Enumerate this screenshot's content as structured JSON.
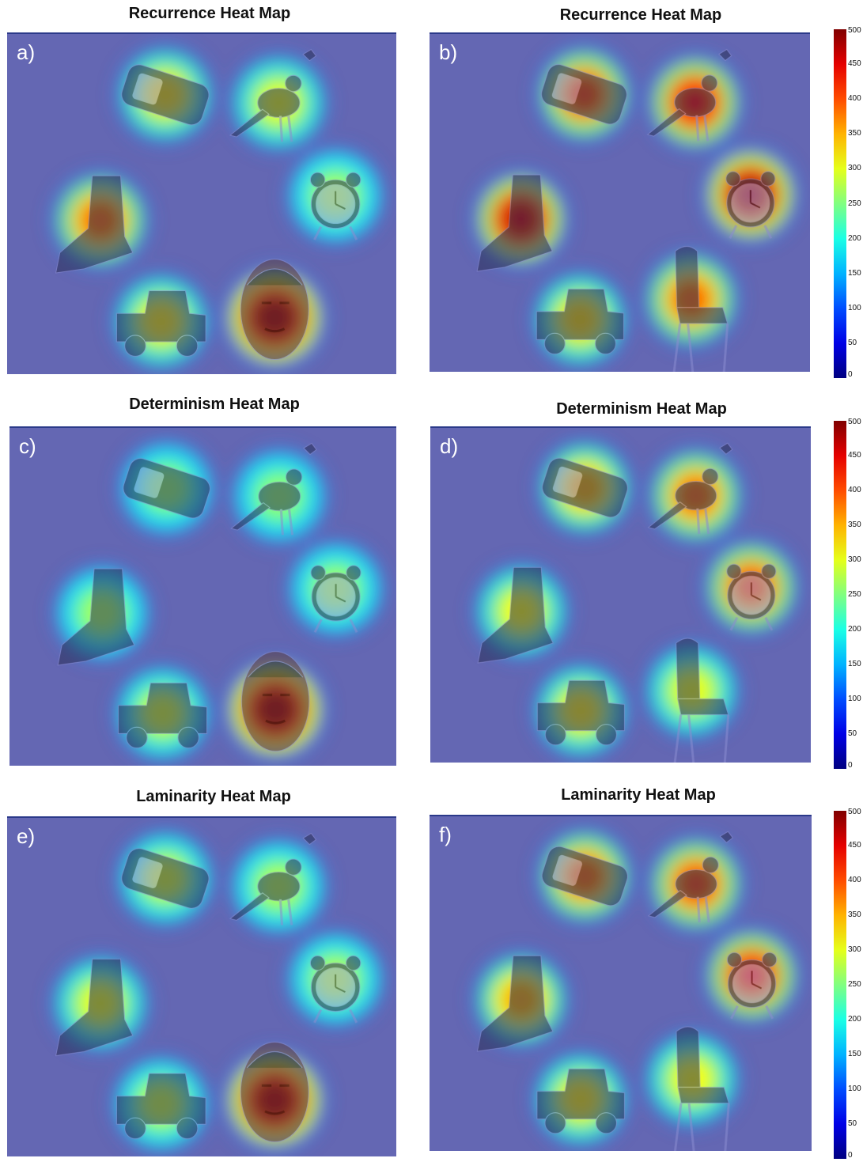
{
  "panels": [
    {
      "label": "a)",
      "title": "Recurrence Heat Map",
      "chair": false,
      "heat": {
        "phone": 0.3,
        "bird": 0.22,
        "shoe": 0.55,
        "clock": 0.1,
        "truck": 0.28,
        "face": 1.0,
        "chair": 0
      }
    },
    {
      "label": "b)",
      "title": "Recurrence Heat Map",
      "chair": true,
      "heat": {
        "phone": 0.62,
        "bird": 0.75,
        "shoe": 0.85,
        "clock": 0.92,
        "truck": 0.32,
        "face": 0,
        "chair": 0.55
      }
    },
    {
      "label": "c)",
      "title": "Determinism Heat Map",
      "chair": false,
      "heat": {
        "phone": 0.05,
        "bird": 0.05,
        "shoe": 0.08,
        "clock": 0.08,
        "truck": 0.18,
        "face": 1.0,
        "chair": 0
      }
    },
    {
      "label": "d)",
      "title": "Determinism Heat Map",
      "chair": true,
      "heat": {
        "phone": 0.4,
        "bird": 0.55,
        "shoe": 0.25,
        "clock": 0.62,
        "truck": 0.28,
        "face": 0,
        "chair": 0.22
      }
    },
    {
      "label": "e)",
      "title": "Laminarity Heat Map",
      "chair": false,
      "heat": {
        "phone": 0.18,
        "bird": 0.12,
        "shoe": 0.22,
        "clock": 0.12,
        "truck": 0.15,
        "face": 0.98,
        "chair": 0
      }
    },
    {
      "label": "f)",
      "title": "Laminarity Heat Map",
      "chair": true,
      "heat": {
        "phone": 0.55,
        "bird": 0.62,
        "shoe": 0.42,
        "clock": 0.72,
        "truck": 0.28,
        "face": 0,
        "chair": 0.25
      }
    }
  ],
  "colorbar": {
    "ticks": [
      "500",
      "450",
      "400",
      "350",
      "300",
      "250",
      "200",
      "150",
      "100",
      "50",
      "0"
    ]
  }
}
